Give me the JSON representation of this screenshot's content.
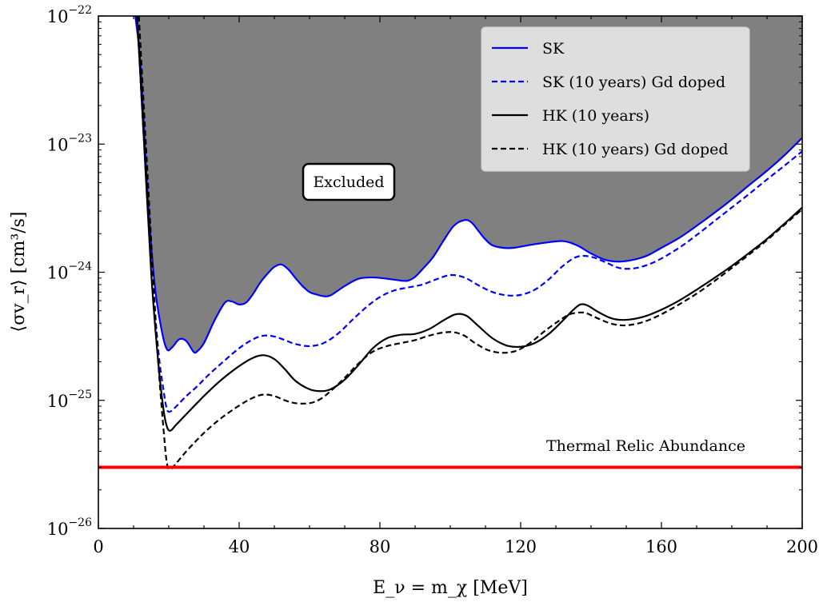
{
  "chart_data": {
    "type": "line",
    "xlabel": "E_ν = m_χ [MeV]",
    "ylabel": "⟨σv_r⟩ [cm³/s]",
    "xlim": [
      0,
      200
    ],
    "ylim": [
      1e-26,
      1e-22
    ],
    "yscale": "log",
    "x_ticks": [
      "0",
      "40",
      "80",
      "120",
      "160",
      "200"
    ],
    "y_ticks": [
      {
        "base": "10",
        "exp": "−26"
      },
      {
        "base": "10",
        "exp": "−25"
      },
      {
        "base": "10",
        "exp": "−24"
      },
      {
        "base": "10",
        "exp": "−23"
      },
      {
        "base": "10",
        "exp": "−22"
      }
    ],
    "legend_position": "top-right",
    "series": [
      {
        "name": "SK",
        "color": "#0000ff",
        "dash": "solid",
        "x": [
          10.5,
          12,
          14,
          16,
          18,
          19.5,
          21,
          23,
          25,
          27,
          28,
          30,
          33,
          36,
          38,
          40,
          42,
          44,
          46,
          48,
          50,
          52,
          54,
          56,
          58,
          60,
          62,
          64,
          66,
          70,
          74,
          78,
          82,
          86,
          88,
          90,
          92,
          95,
          98,
          101,
          104,
          106,
          108,
          110,
          112,
          115,
          118,
          122,
          127,
          132,
          136,
          140,
          144,
          148,
          152,
          156,
          160,
          165,
          170,
          175,
          180,
          185,
          190,
          195,
          200
        ],
        "y": [
          1e-22,
          4e-23,
          4e-24,
          8e-25,
          3.5e-25,
          2.5e-25,
          2.6e-25,
          3e-25,
          2.9e-25,
          2.4e-25,
          2.4e-25,
          2.8e-25,
          4.2e-25,
          5.8e-25,
          5.9e-25,
          5.6e-25,
          5.8e-25,
          6.8e-25,
          8.3e-25,
          9.7e-25,
          1.1e-24,
          1.15e-24,
          1.05e-24,
          9e-25,
          7.8e-25,
          7e-25,
          6.7e-25,
          6.5e-25,
          6.6e-25,
          7.8e-25,
          8.9e-25,
          9.1e-25,
          8.9e-25,
          8.6e-25,
          8.6e-25,
          9.2e-25,
          1.05e-24,
          1.3e-24,
          1.75e-24,
          2.3e-24,
          2.55e-24,
          2.45e-24,
          2.1e-24,
          1.8e-24,
          1.62e-24,
          1.55e-24,
          1.55e-24,
          1.62e-24,
          1.7e-24,
          1.75e-24,
          1.62e-24,
          1.4e-24,
          1.25e-24,
          1.21e-24,
          1.25e-24,
          1.35e-24,
          1.55e-24,
          1.85e-24,
          2.3e-24,
          2.9e-24,
          3.7e-24,
          4.8e-24,
          6.2e-24,
          8.2e-24,
          1.12e-23
        ]
      },
      {
        "name": "SK (10 years) Gd doped",
        "color": "#0000ff",
        "dash": "dashed",
        "x": [
          11,
          13,
          15,
          17,
          18.5,
          19.5,
          20.5,
          22,
          25,
          28,
          31,
          35,
          40,
          44,
          47,
          50,
          53,
          56,
          60,
          64,
          68,
          72,
          76,
          80,
          84,
          88,
          92,
          96,
          100,
          104,
          108,
          112,
          116,
          120,
          124,
          128,
          132,
          136,
          140,
          144,
          148,
          152,
          156,
          160,
          165,
          170,
          175,
          180,
          185,
          190,
          195,
          200
        ],
        "y": [
          1e-22,
          1e-23,
          1.2e-24,
          2.5e-25,
          1.2e-25,
          8.5e-26,
          8.2e-26,
          8.9e-26,
          1.08e-25,
          1.28e-25,
          1.55e-25,
          1.95e-25,
          2.55e-25,
          3e-25,
          3.2e-25,
          3.15e-25,
          2.95e-25,
          2.75e-25,
          2.65e-25,
          2.8e-25,
          3.3e-25,
          4.2e-25,
          5.3e-25,
          6.4e-25,
          7.2e-25,
          7.6e-25,
          8e-25,
          8.8e-25,
          9.5e-25,
          9.1e-25,
          7.9e-25,
          7e-25,
          6.6e-25,
          6.65e-25,
          7.3e-25,
          8.8e-25,
          1.12e-24,
          1.32e-24,
          1.32e-24,
          1.2e-24,
          1.08e-24,
          1.07e-24,
          1.14e-24,
          1.28e-24,
          1.55e-24,
          1.95e-24,
          2.5e-24,
          3.2e-24,
          4.1e-24,
          5.3e-24,
          6.8e-24,
          8.8e-24
        ]
      },
      {
        "name": "HK (10 years)",
        "color": "#000000",
        "dash": "solid",
        "x": [
          11,
          13,
          15,
          17,
          18.5,
          19.5,
          20.5,
          22,
          25,
          28,
          31,
          35,
          40,
          44,
          47,
          50,
          53,
          56,
          60,
          63,
          66,
          70,
          74,
          78,
          82,
          86,
          90,
          94,
          98,
          101,
          103,
          105,
          108,
          112,
          116,
          120,
          124,
          128,
          132,
          135,
          137,
          139,
          142,
          146,
          150,
          155,
          160,
          165,
          170,
          175,
          180,
          185,
          190,
          195,
          200
        ],
        "y": [
          1e-22,
          1e-23,
          1e-24,
          2e-25,
          8.5e-26,
          6.2e-26,
          5.8e-26,
          6.4e-26,
          7.8e-26,
          9.5e-26,
          1.15e-25,
          1.45e-25,
          1.85e-25,
          2.15e-25,
          2.25e-25,
          2.1e-25,
          1.75e-25,
          1.42e-25,
          1.22e-25,
          1.18e-25,
          1.22e-25,
          1.45e-25,
          1.9e-25,
          2.55e-25,
          3.05e-25,
          3.25e-25,
          3.3e-25,
          3.6e-25,
          4.2e-25,
          4.65e-25,
          4.72e-25,
          4.5e-25,
          3.8e-25,
          3.05e-25,
          2.68e-25,
          2.62e-25,
          2.8e-25,
          3.3e-25,
          4.2e-25,
          5.1e-25,
          5.6e-25,
          5.5e-25,
          4.9e-25,
          4.35e-25,
          4.25e-25,
          4.5e-25,
          5.1e-25,
          6e-25,
          7.3e-25,
          9e-25,
          1.12e-24,
          1.42e-24,
          1.82e-24,
          2.4e-24,
          3.2e-24
        ]
      },
      {
        "name": "HK (10 years) Gd doped",
        "color": "#000000",
        "dash": "dashed",
        "x": [
          11.5,
          13.5,
          15.5,
          17,
          18.5,
          19.5,
          20.5,
          22,
          25,
          28,
          31,
          35,
          40,
          44,
          47,
          50,
          53,
          56,
          60,
          63,
          66,
          70,
          74,
          78,
          82,
          86,
          90,
          94,
          98,
          101,
          104,
          107,
          111,
          115,
          119,
          123,
          127,
          131,
          134,
          137,
          139,
          142,
          146,
          150,
          155,
          160,
          165,
          170,
          175,
          180,
          185,
          190,
          195,
          200
        ],
        "y": [
          1e-22,
          1e-23,
          1e-24,
          2e-25,
          6e-26,
          3.2e-26,
          2.9e-26,
          3.2e-26,
          4e-26,
          4.9e-26,
          5.9e-26,
          7.3e-26,
          9.1e-26,
          1.05e-25,
          1.11e-25,
          1.08e-25,
          1e-25,
          9.5e-26,
          9.5e-26,
          1.02e-25,
          1.18e-25,
          1.5e-25,
          1.95e-25,
          2.4e-25,
          2.65e-25,
          2.8e-25,
          2.95e-25,
          3.2e-25,
          3.38e-25,
          3.4e-25,
          3.2e-25,
          2.8e-25,
          2.45e-25,
          2.35e-25,
          2.45e-25,
          2.85e-25,
          3.5e-25,
          4.2e-25,
          4.7e-25,
          4.85e-25,
          4.75e-25,
          4.35e-25,
          3.95e-25,
          3.85e-25,
          4.1e-25,
          4.7e-25,
          5.6e-25,
          6.8e-25,
          8.5e-25,
          1.08e-24,
          1.38e-24,
          1.78e-24,
          2.35e-24,
          3.1e-24
        ]
      }
    ],
    "threshold": {
      "label": "Thermal Relic Abundance",
      "value": 3e-26,
      "color": "#ff0000"
    },
    "excluded_region": {
      "label": "Excluded",
      "fill_color": "#808080",
      "bounded_by": "SK"
    }
  }
}
